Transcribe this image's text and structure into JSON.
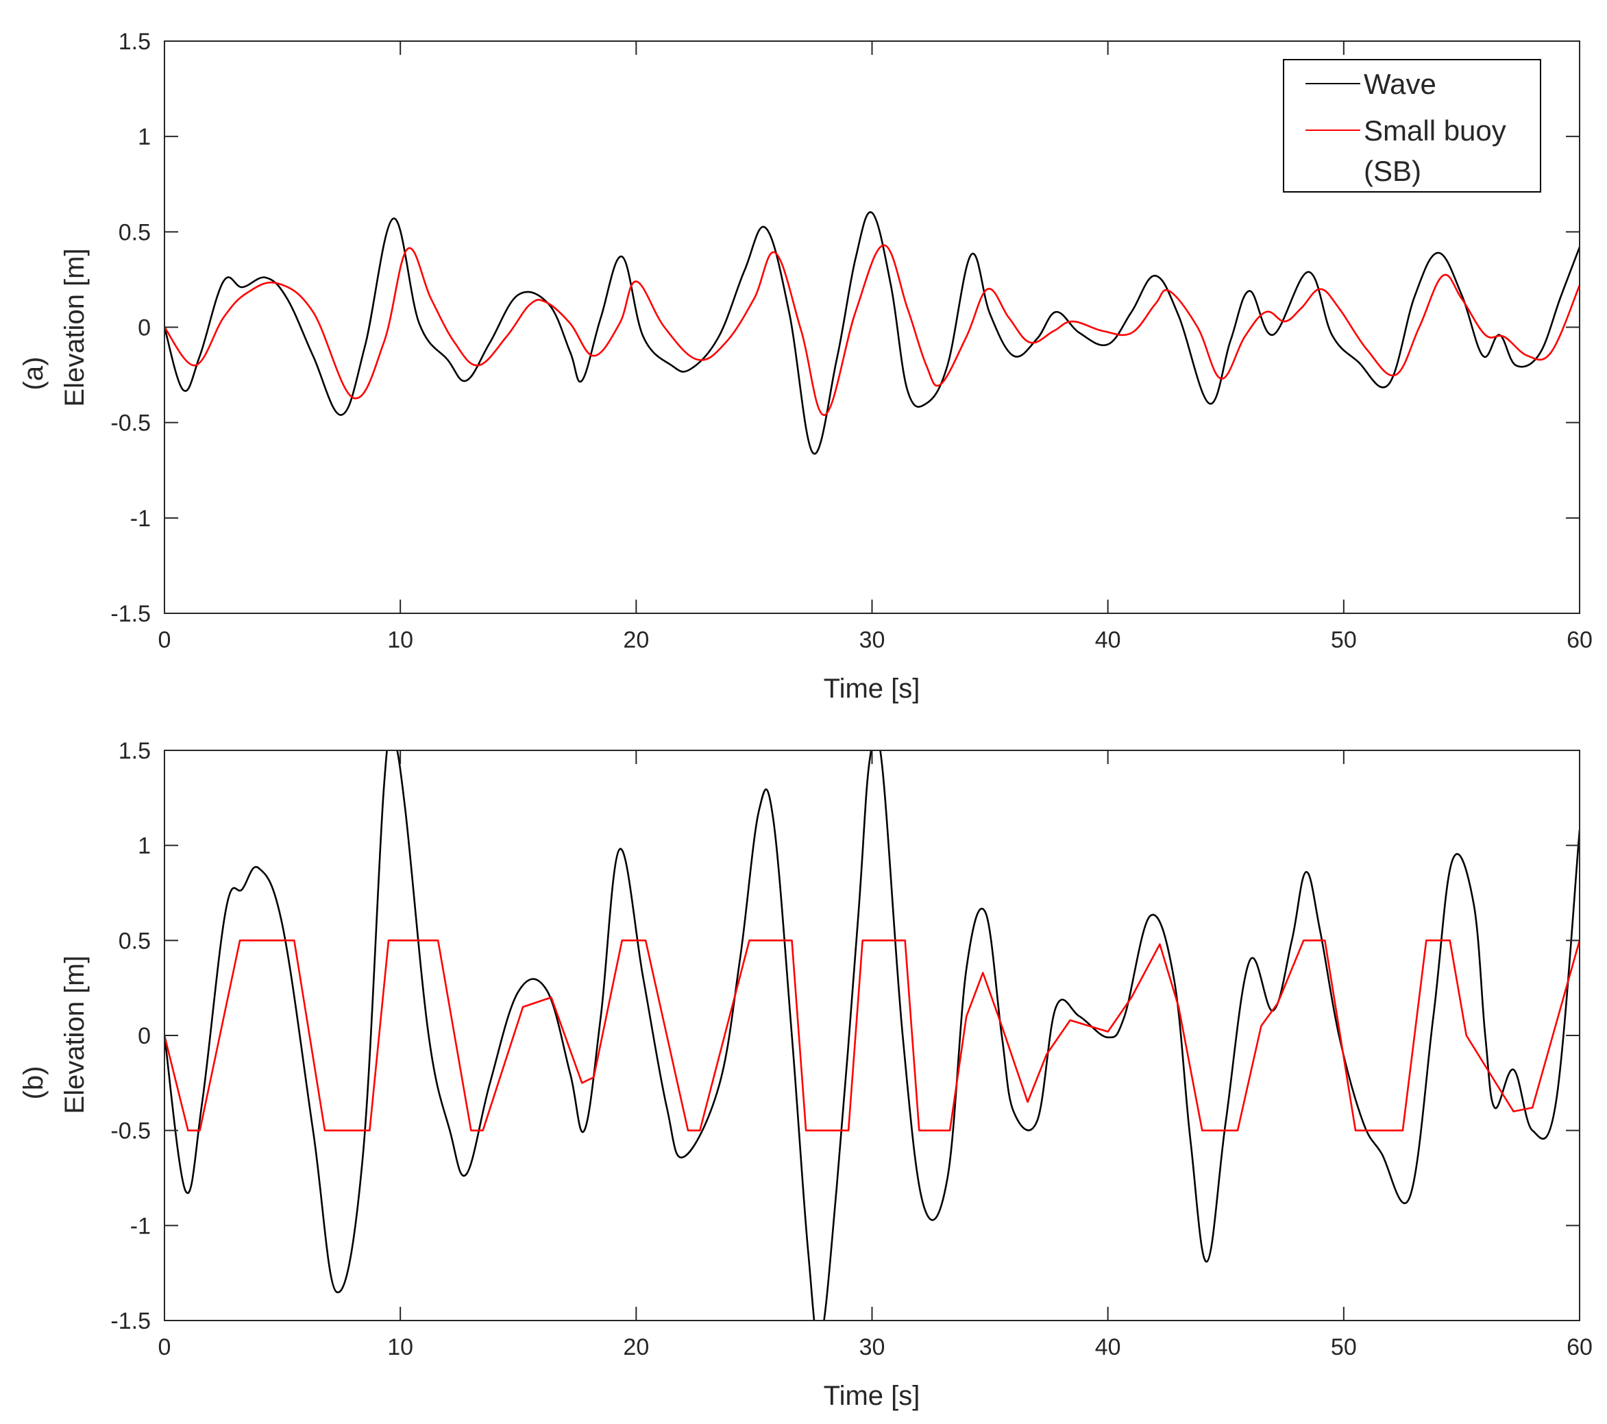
{
  "chart_data": [
    {
      "type": "line",
      "panel_label": "(a)",
      "xlabel": "Time [s]",
      "ylabel": "Elevation [m]",
      "xlim": [
        0,
        60
      ],
      "ylim": [
        -1.5,
        1.5
      ],
      "xticks": [
        0,
        10,
        20,
        30,
        40,
        50,
        60
      ],
      "yticks": [
        -1.5,
        -1,
        -0.5,
        0,
        0.5,
        1,
        1.5
      ],
      "xtick_labels": [
        "0",
        "10",
        "20",
        "30",
        "40",
        "50",
        "60"
      ],
      "ytick_labels": [
        "-1.5",
        "-1",
        "-0.5",
        "0",
        "0.5",
        "1",
        "1.5"
      ],
      "grid": false,
      "legend_position": "top-right",
      "legend": [
        "Wave",
        "Small buoy",
        "(SB)"
      ],
      "series": [
        {
          "name": "Wave",
          "color": "#000000",
          "x": [
            0,
            0.8,
            1.5,
            2.5,
            3.3,
            4.3,
            5.2,
            6.3,
            7.5,
            8.5,
            9.7,
            10.8,
            12.0,
            12.8,
            13.8,
            15.0,
            16.3,
            17.2,
            17.7,
            18.5,
            19.4,
            20.3,
            21.5,
            22.3,
            23.5,
            24.6,
            25.5,
            26.5,
            27.5,
            28.5,
            29.3,
            30.0,
            30.8,
            31.5,
            32.3,
            33.2,
            34.2,
            35.0,
            36.0,
            37.0,
            37.8,
            38.8,
            40.0,
            41.0,
            42.0,
            43.0,
            44.3,
            45.2,
            46.0,
            47.0,
            48.5,
            49.5,
            50.6,
            51.9,
            53.0,
            54.0,
            55.0,
            55.9,
            56.6,
            57.3,
            58.3,
            59.2,
            60.0
          ],
          "y": [
            0,
            -0.33,
            -0.15,
            0.24,
            0.21,
            0.26,
            0.15,
            -0.15,
            -0.46,
            -0.1,
            0.57,
            0.02,
            -0.17,
            -0.28,
            -0.08,
            0.17,
            0.12,
            -0.13,
            -0.28,
            0.05,
            0.37,
            -0.05,
            -0.2,
            -0.22,
            -0.05,
            0.3,
            0.52,
            0.07,
            -0.66,
            -0.17,
            0.36,
            0.6,
            0.22,
            -0.33,
            -0.4,
            -0.2,
            0.38,
            0.07,
            -0.15,
            -0.06,
            0.08,
            -0.03,
            -0.09,
            0.08,
            0.27,
            0.06,
            -0.4,
            -0.07,
            0.19,
            -0.04,
            0.29,
            -0.04,
            -0.18,
            -0.3,
            0.16,
            0.39,
            0.17,
            -0.15,
            -0.04,
            -0.2,
            -0.14,
            0.16,
            0.42
          ]
        },
        {
          "name": "Small buoy (SB)",
          "color": "#ff0000",
          "x": [
            0,
            1.3,
            2.5,
            3.5,
            4.8,
            6.3,
            8.0,
            9.3,
            10.3,
            11.3,
            12.3,
            13.3,
            14.5,
            15.5,
            16.2,
            17.2,
            18.2,
            19.3,
            20.0,
            21.2,
            22.6,
            23.8,
            25.0,
            25.9,
            27.0,
            28.0,
            29.3,
            30.5,
            31.5,
            32.3,
            32.9,
            34.0,
            34.9,
            35.8,
            36.7,
            37.7,
            38.5,
            39.8,
            41.0,
            42.0,
            42.6,
            43.8,
            44.8,
            45.8,
            46.7,
            47.5,
            48.2,
            49.0,
            49.8,
            51.0,
            52.2,
            53.2,
            54.2,
            55.0,
            56.0,
            56.8,
            57.8,
            58.8,
            60.0
          ],
          "y": [
            0,
            -0.2,
            0.05,
            0.18,
            0.23,
            0.08,
            -0.37,
            -0.08,
            0.41,
            0.15,
            -0.08,
            -0.2,
            -0.05,
            0.12,
            0.13,
            0.02,
            -0.15,
            0.02,
            0.24,
            0.0,
            -0.17,
            -0.08,
            0.15,
            0.39,
            -0.02,
            -0.46,
            0.08,
            0.43,
            0.1,
            -0.2,
            -0.3,
            -0.05,
            0.2,
            0.05,
            -0.08,
            -0.02,
            0.03,
            -0.02,
            -0.03,
            0.12,
            0.19,
            0.0,
            -0.27,
            -0.05,
            0.08,
            0.03,
            0.1,
            0.2,
            0.1,
            -0.12,
            -0.25,
            0.0,
            0.27,
            0.15,
            -0.04,
            -0.05,
            -0.15,
            -0.13,
            0.22
          ]
        }
      ]
    },
    {
      "type": "line",
      "panel_label": "(b)",
      "xlabel": "Time [s]",
      "ylabel": "Elevation [m]",
      "xlim": [
        0,
        60
      ],
      "ylim": [
        -1.5,
        1.5
      ],
      "xticks": [
        0,
        10,
        20,
        30,
        40,
        50,
        60
      ],
      "yticks": [
        -1.5,
        -1,
        -0.5,
        0,
        0.5,
        1,
        1.5
      ],
      "xtick_labels": [
        "0",
        "10",
        "20",
        "30",
        "40",
        "50",
        "60"
      ],
      "ytick_labels": [
        "-1.5",
        "-1",
        "-0.5",
        "0",
        "0.5",
        "1",
        "1.5"
      ],
      "grid": false,
      "series": [
        {
          "name": "Wave",
          "color": "#000000",
          "x": [
            0,
            0.9,
            1.6,
            2.6,
            3.3,
            4.0,
            5.0,
            6.3,
            7.3,
            8.4,
            9.3,
            9.7,
            10.2,
            11.2,
            12.1,
            12.8,
            13.8,
            15.0,
            16.2,
            17.2,
            17.8,
            18.5,
            19.3,
            20.3,
            21.3,
            22.0,
            23.5,
            24.4,
            25.2,
            25.8,
            26.6,
            27.3,
            27.8,
            28.5,
            29.4,
            29.9,
            30.4,
            31.3,
            32.2,
            33.2,
            34.0,
            34.8,
            35.5,
            36.0,
            37.0,
            37.8,
            38.8,
            40.0,
            40.7,
            41.8,
            42.8,
            43.5,
            44.2,
            45.0,
            46.0,
            47.0,
            47.8,
            48.4,
            49.0,
            49.8,
            50.8,
            51.6,
            52.8,
            53.8,
            54.6,
            55.5,
            56.0,
            56.4,
            57.2,
            58.0,
            59.0,
            60.0
          ],
          "y": [
            0,
            -0.82,
            -0.35,
            0.66,
            0.77,
            0.88,
            0.58,
            -0.5,
            -1.35,
            -0.65,
            1.3,
            1.55,
            1.2,
            0.0,
            -0.5,
            -0.73,
            -0.25,
            0.23,
            0.24,
            -0.2,
            -0.5,
            0.1,
            0.98,
            0.3,
            -0.38,
            -0.64,
            -0.27,
            0.4,
            1.18,
            1.15,
            0.0,
            -1.15,
            -1.6,
            -0.8,
            0.6,
            1.45,
            1.45,
            0.0,
            -0.9,
            -0.75,
            0.35,
            0.65,
            0.0,
            -0.4,
            -0.45,
            0.15,
            0.1,
            -0.01,
            0.1,
            0.63,
            0.3,
            -0.55,
            -1.19,
            -0.45,
            0.39,
            0.13,
            0.5,
            0.86,
            0.55,
            0.0,
            -0.45,
            -0.62,
            -0.85,
            0.1,
            0.92,
            0.7,
            0.0,
            -0.38,
            -0.18,
            -0.5,
            -0.35,
            1.08
          ]
        },
        {
          "name": "Small buoy (SB)",
          "color": "#ff0000",
          "x": [
            0,
            1.0,
            1.5,
            3.2,
            5.5,
            6.8,
            8.7,
            9.5,
            11.6,
            13.0,
            13.5,
            15.2,
            16.4,
            17.7,
            18.2,
            19.4,
            20.4,
            22.2,
            22.7,
            24.8,
            26.6,
            27.2,
            29.0,
            29.6,
            31.4,
            32.0,
            33.3,
            34.0,
            34.7,
            35.5,
            36.6,
            37.4,
            38.4,
            39.2,
            40.0,
            41.0,
            42.2,
            43.0,
            44.0,
            45.5,
            46.5,
            47.2,
            48.3,
            49.2,
            50.5,
            51.5,
            52.5,
            53.5,
            54.5,
            55.2,
            56.2,
            57.2,
            58.0,
            60.0
          ],
          "y": [
            0,
            -0.5,
            -0.5,
            0.5,
            0.5,
            -0.5,
            -0.5,
            0.5,
            0.5,
            -0.5,
            -0.5,
            0.15,
            0.2,
            -0.25,
            -0.22,
            0.5,
            0.5,
            -0.5,
            -0.5,
            0.5,
            0.5,
            -0.5,
            -0.5,
            0.5,
            0.5,
            -0.5,
            -0.5,
            0.1,
            0.33,
            0.05,
            -0.35,
            -0.1,
            0.08,
            0.05,
            0.02,
            0.2,
            0.48,
            0.15,
            -0.5,
            -0.5,
            0.05,
            0.17,
            0.5,
            0.5,
            -0.5,
            -0.5,
            -0.5,
            0.5,
            0.5,
            0.0,
            -0.2,
            -0.4,
            -0.38,
            0.5
          ]
        }
      ]
    }
  ]
}
